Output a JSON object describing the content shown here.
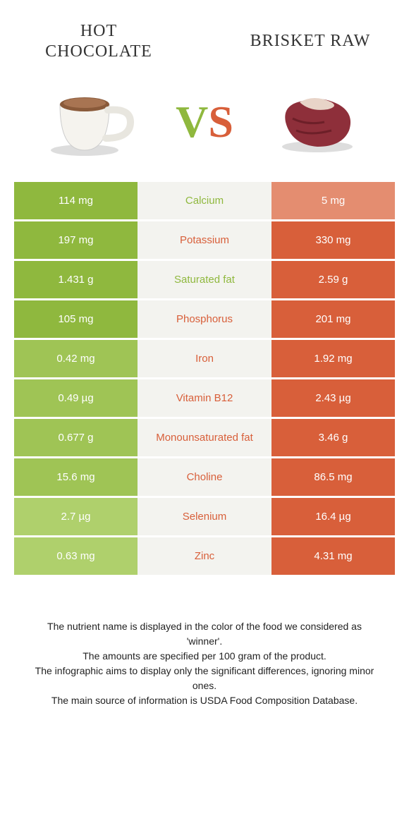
{
  "left_food": {
    "title": "Hot chocolate"
  },
  "right_food": {
    "title": "Brisket raw"
  },
  "colors": {
    "green_shades": [
      "#8fb83e",
      "#9fc455",
      "#afd06c"
    ],
    "red_shades": [
      "#d85f3a",
      "#de7655",
      "#e48d70"
    ],
    "mid_bg": "#f3f3ef",
    "white": "#ffffff"
  },
  "typography": {
    "title_font": "Georgia serif",
    "title_fontsize": 24,
    "cell_fontsize": 15,
    "vs_fontsize": 64,
    "footnote_fontsize": 14
  },
  "rows": [
    {
      "left_value": "114 mg",
      "left_shade": 0,
      "nutrient": "Calcium",
      "winner": "left",
      "right_value": "5 mg",
      "right_shade": 2
    },
    {
      "left_value": "197 mg",
      "left_shade": 0,
      "nutrient": "Potassium",
      "winner": "right",
      "right_value": "330 mg",
      "right_shade": 0
    },
    {
      "left_value": "1.431 g",
      "left_shade": 0,
      "nutrient": "Saturated fat",
      "winner": "left",
      "right_value": "2.59 g",
      "right_shade": 0
    },
    {
      "left_value": "105 mg",
      "left_shade": 0,
      "nutrient": "Phosphorus",
      "winner": "right",
      "right_value": "201 mg",
      "right_shade": 0
    },
    {
      "left_value": "0.42 mg",
      "left_shade": 1,
      "nutrient": "Iron",
      "winner": "right",
      "right_value": "1.92 mg",
      "right_shade": 0
    },
    {
      "left_value": "0.49 µg",
      "left_shade": 1,
      "nutrient": "Vitamin B12",
      "winner": "right",
      "right_value": "2.43 µg",
      "right_shade": 0
    },
    {
      "left_value": "0.677 g",
      "left_shade": 1,
      "nutrient": "Monounsaturated fat",
      "winner": "right",
      "right_value": "3.46 g",
      "right_shade": 0
    },
    {
      "left_value": "15.6 mg",
      "left_shade": 1,
      "nutrient": "Choline",
      "winner": "right",
      "right_value": "86.5 mg",
      "right_shade": 0
    },
    {
      "left_value": "2.7 µg",
      "left_shade": 2,
      "nutrient": "Selenium",
      "winner": "right",
      "right_value": "16.4 µg",
      "right_shade": 0
    },
    {
      "left_value": "0.63 mg",
      "left_shade": 2,
      "nutrient": "Zinc",
      "winner": "right",
      "right_value": "4.31 mg",
      "right_shade": 0
    }
  ],
  "footnotes": [
    "The nutrient name is displayed in the color of the food we considered as 'winner'.",
    "The amounts are specified per 100 gram of the product.",
    "The infographic aims to display only the significant differences, ignoring minor ones.",
    "The main source of information is USDA Food Composition Database."
  ]
}
